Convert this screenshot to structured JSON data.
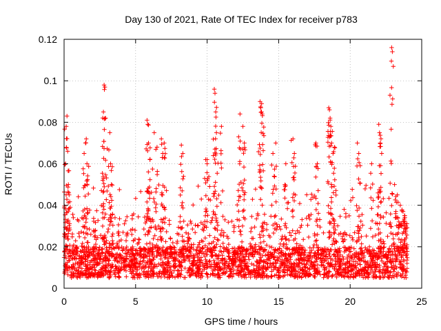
{
  "chart_data": {
    "type": "scatter",
    "title": "Day 130 of 2021, Rate Of TEC Index for receiver p783",
    "xlabel": "GPS time / hours",
    "ylabel": "ROTI / TECUs",
    "xlim": [
      0,
      25
    ],
    "ylim": [
      0,
      0.12
    ],
    "xticks": [
      0,
      5,
      10,
      15,
      20,
      25
    ],
    "xtick_labels": [
      "0",
      "5",
      "10",
      "15",
      "20",
      "25"
    ],
    "yticks": [
      0,
      0.02,
      0.04,
      0.06,
      0.08,
      0.1,
      0.12
    ],
    "ytick_labels": [
      "0",
      "0.02",
      "0.04",
      "0.06",
      "0.08",
      "0.1",
      "0.12"
    ],
    "grid": true,
    "marker": "plus",
    "series": [
      {
        "name": "ROTI",
        "color": "#ff0000",
        "x": [
          0.1,
          0.15,
          0.2,
          0.25,
          0.3,
          0.35,
          1.4,
          1.5,
          1.55,
          1.6,
          2.7,
          2.75,
          2.8,
          2.85,
          2.9,
          3.2,
          3.25,
          3.3,
          5.8,
          5.85,
          5.9,
          6.0,
          6.3,
          6.5,
          6.8,
          6.9,
          7.0,
          8.2,
          8.3,
          9.9,
          10.0,
          10.5,
          10.55,
          10.6,
          10.65,
          11.0,
          12.2,
          12.3,
          12.5,
          12.6,
          13.7,
          13.75,
          13.8,
          13.85,
          14.6,
          14.8,
          15.5,
          16.0,
          16.1,
          17.6,
          17.7,
          18.5,
          18.55,
          18.6,
          18.65,
          18.7,
          18.8,
          18.9,
          20.5,
          20.6,
          21.5,
          22.0,
          22.05,
          22.1,
          22.2,
          22.9,
          22.95,
          23.1,
          23.3,
          23.5,
          23.7,
          23.8,
          23.9
        ],
        "y": [
          0.06,
          0.078,
          0.083,
          0.066,
          0.05,
          0.045,
          0.065,
          0.07,
          0.072,
          0.06,
          0.052,
          0.085,
          0.098,
          0.097,
          0.082,
          0.075,
          0.06,
          0.05,
          0.081,
          0.079,
          0.07,
          0.062,
          0.075,
          0.068,
          0.072,
          0.065,
          0.07,
          0.069,
          0.065,
          0.062,
          0.06,
          0.096,
          0.094,
          0.085,
          0.075,
          0.078,
          0.073,
          0.084,
          0.078,
          0.07,
          0.09,
          0.087,
          0.085,
          0.084,
          0.065,
          0.07,
          0.06,
          0.072,
          0.065,
          0.07,
          0.06,
          0.087,
          0.086,
          0.082,
          0.078,
          0.07,
          0.065,
          0.068,
          0.07,
          0.065,
          0.06,
          0.079,
          0.075,
          0.07,
          0.065,
          0.116,
          0.114,
          0.05,
          0.045,
          0.04,
          0.037,
          0.035,
          0.03
        ],
        "baseline_band": {
          "x_range": [
            0,
            24
          ],
          "y_min": 0.005,
          "y_max": 0.03,
          "description": "dense cloud of points"
        }
      }
    ]
  }
}
